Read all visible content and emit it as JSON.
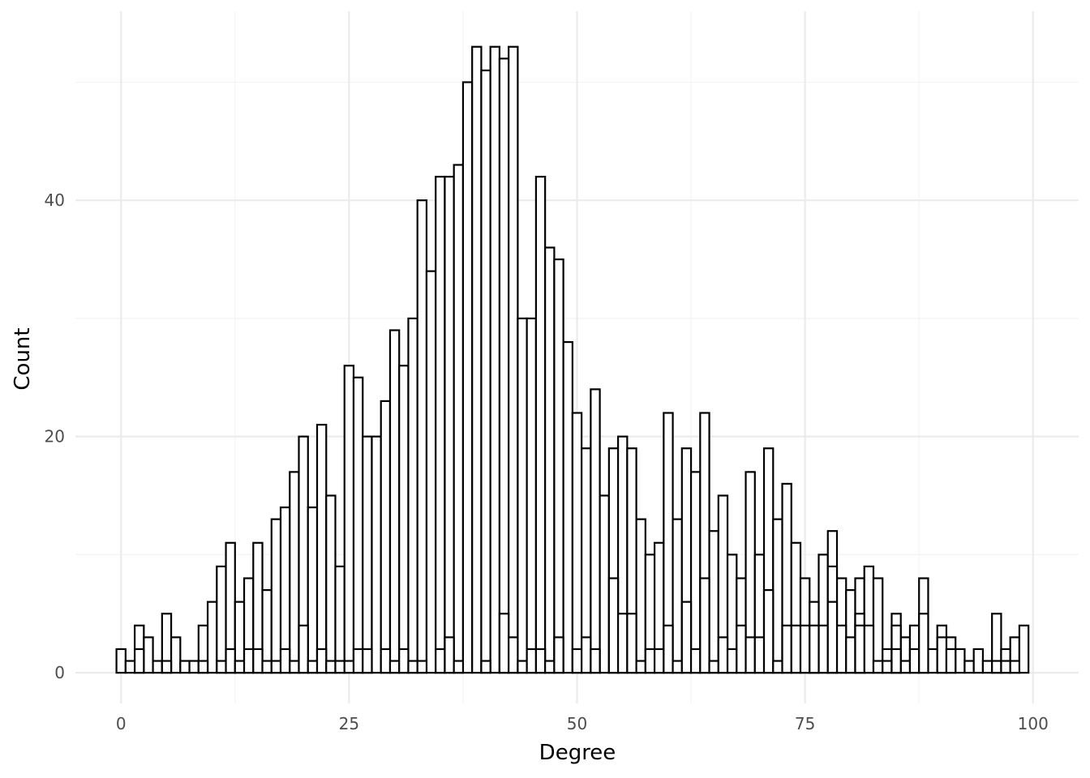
{
  "chart_data": {
    "type": "bar",
    "title": "",
    "xlabel": "Degree",
    "ylabel": "Count",
    "xlim": [
      -5,
      105
    ],
    "ylim": [
      -2.6,
      56
    ],
    "binwidth": 1,
    "x_ticks": [
      0,
      25,
      50,
      75,
      100
    ],
    "y_ticks": [
      0,
      20,
      40
    ],
    "grid": true,
    "series": [
      {
        "x": [
          0,
          1,
          2,
          3,
          4,
          5,
          6,
          7,
          8,
          9,
          10,
          11,
          12,
          13,
          14,
          15,
          16,
          17,
          18,
          19,
          20,
          21,
          22,
          23,
          24,
          25,
          26,
          27,
          28,
          29,
          30,
          31,
          32,
          33,
          34,
          35,
          36,
          37,
          38,
          39,
          40,
          41,
          42,
          43,
          44,
          45,
          46,
          47,
          48,
          49,
          50,
          51,
          52,
          53,
          54,
          55,
          56,
          57,
          58,
          59,
          60,
          61,
          62,
          63,
          64,
          65,
          66,
          67,
          68,
          69,
          70,
          71,
          72,
          73,
          74,
          75,
          76,
          77,
          78,
          79,
          80,
          81,
          82,
          83,
          84,
          85,
          86,
          87,
          88,
          89,
          90,
          91,
          92,
          93,
          94,
          95,
          96,
          97,
          98,
          99
        ],
        "values": [
          2,
          1,
          4,
          3,
          1,
          5,
          3,
          1,
          1,
          4,
          6,
          9,
          11,
          6,
          8,
          11,
          7,
          13,
          14,
          17,
          20,
          14,
          21,
          15,
          9,
          26,
          25,
          20,
          20,
          23,
          29,
          26,
          30,
          40,
          34,
          42,
          42,
          43,
          50,
          53,
          51,
          53,
          52,
          53,
          30,
          30,
          42,
          36,
          35,
          28,
          22,
          19,
          24,
          15,
          19,
          20,
          19,
          13,
          10,
          11,
          22,
          13,
          19,
          17,
          22,
          12,
          15,
          10,
          8,
          17,
          10,
          19,
          13,
          16,
          11,
          8,
          4,
          10,
          12,
          8,
          7,
          8,
          9,
          8,
          2,
          5,
          3,
          4,
          8,
          2,
          4,
          3,
          2,
          1,
          2,
          1,
          5,
          2,
          3,
          4
        ]
      },
      {
        "x": [
          0,
          1,
          2,
          3,
          4,
          5,
          6,
          7,
          8,
          9,
          10,
          11,
          12,
          13,
          14,
          15,
          16,
          17,
          18,
          19,
          20,
          21,
          22,
          23,
          24,
          25,
          26,
          27,
          28,
          29,
          30,
          31,
          32,
          33,
          34,
          35,
          36,
          37,
          38,
          39,
          40,
          41,
          42,
          43,
          44,
          45,
          46,
          47,
          48,
          49,
          50,
          51,
          52,
          53,
          54,
          55,
          56,
          57,
          58,
          59,
          60,
          61,
          62,
          63,
          64,
          65,
          66,
          67,
          68,
          69,
          70,
          71,
          72,
          73,
          74,
          75,
          76,
          77,
          78,
          79,
          80,
          81,
          82,
          83,
          84,
          85,
          86,
          87,
          88,
          89,
          90,
          91,
          92,
          93,
          94,
          95,
          96,
          97,
          98,
          99
        ],
        "values": [
          0,
          0,
          2,
          0,
          0,
          1,
          0,
          0,
          0,
          1,
          0,
          1,
          2,
          1,
          2,
          2,
          1,
          1,
          2,
          1,
          4,
          1,
          2,
          1,
          1,
          1,
          2,
          2,
          0,
          2,
          1,
          2,
          1,
          1,
          0,
          2,
          3,
          1,
          0,
          0,
          1,
          0,
          5,
          3,
          1,
          2,
          2,
          1,
          3,
          0,
          2,
          3,
          2,
          0,
          8,
          5,
          5,
          1,
          2,
          2,
          4,
          1,
          6,
          2,
          8,
          1,
          3,
          2,
          4,
          3,
          3,
          7,
          1,
          4,
          4,
          4,
          6,
          4,
          9,
          4,
          3,
          5,
          4,
          1,
          1,
          4,
          1,
          2,
          5,
          0,
          3,
          2,
          0,
          0,
          0,
          0,
          1,
          1,
          1,
          0
        ]
      },
      {
        "x": [
          0,
          1,
          2,
          3,
          4,
          5,
          6,
          7,
          8,
          9,
          10,
          11,
          12,
          13,
          14,
          15,
          16,
          17,
          18,
          19,
          20,
          21,
          22,
          23,
          24,
          25,
          26,
          27,
          28,
          29,
          30,
          31,
          32,
          33,
          34,
          35,
          36,
          37,
          38,
          39,
          40,
          41,
          42,
          43,
          44,
          45,
          46,
          47,
          48,
          49,
          50,
          51,
          52,
          53,
          54,
          55,
          56,
          57,
          58,
          59,
          60,
          61,
          62,
          63,
          64,
          65,
          66,
          67,
          68,
          69,
          70,
          71,
          72,
          73,
          74,
          75,
          76,
          77,
          78,
          79,
          80,
          81,
          82,
          83,
          84,
          85,
          86,
          87,
          88,
          89,
          90,
          91,
          92,
          93,
          94,
          95,
          96,
          97,
          98,
          99
        ],
        "values": [
          0,
          0,
          0,
          0,
          0,
          0,
          0,
          0,
          0,
          0,
          0,
          0,
          0,
          0,
          0,
          0,
          0,
          0,
          0,
          0,
          0,
          0,
          0,
          0,
          0,
          0,
          0,
          0,
          0,
          0,
          0,
          0,
          0,
          0,
          0,
          0,
          0,
          0,
          0,
          0,
          0,
          0,
          0,
          0,
          0,
          0,
          0,
          0,
          0,
          0,
          0,
          0,
          0,
          0,
          0,
          0,
          0,
          0,
          0,
          0,
          0,
          0,
          0,
          0,
          0,
          0,
          0,
          0,
          0,
          0,
          0,
          0,
          0,
          0,
          0,
          0,
          4,
          0,
          6,
          0,
          0,
          4,
          0,
          0,
          0,
          2,
          0,
          0,
          0,
          0,
          0,
          0,
          0,
          0,
          0,
          0,
          0,
          0,
          0,
          0
        ]
      }
    ]
  }
}
